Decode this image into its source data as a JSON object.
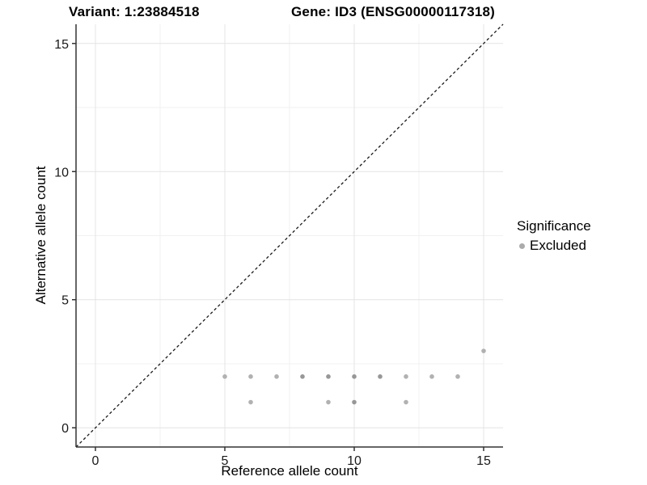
{
  "header": {
    "variant_title": "Variant: 1:23884518",
    "gene_title": "Gene: ID3 (ENSG00000117318)"
  },
  "axes": {
    "x_label": "Reference allele count",
    "y_label": "Alternative allele count"
  },
  "legend": {
    "title": "Significance",
    "items": [
      {
        "label": "Excluded",
        "color": "#ababab"
      }
    ]
  },
  "colors": {
    "point_light": "#b1b1b1",
    "point_dark": "#979797",
    "axis_line": "#333333",
    "tick_label": "#1a1a1a",
    "grid_major": "#e4e4e4",
    "grid_minor": "#f1f1f1",
    "identity_line": "#1a1a1a",
    "background": "#ffffff"
  },
  "chart_data": {
    "type": "scatter",
    "title": "Variant: 1:23884518   |   Gene: ID3 (ENSG00000117318)",
    "xlabel": "Reference allele count",
    "ylabel": "Alternative allele count",
    "xlim": [
      -0.75,
      15.75
    ],
    "ylim": [
      -0.75,
      15.75
    ],
    "x_ticks": [
      0,
      5,
      10,
      15
    ],
    "y_ticks": [
      0,
      5,
      10,
      15
    ],
    "x_tick_labels": [
      "0",
      "5",
      "10",
      "15"
    ],
    "y_tick_labels": [
      "0",
      "5",
      "10",
      "15"
    ],
    "x_minor_ticks": [
      2.5,
      7.5,
      12.5
    ],
    "y_minor_ticks": [
      2.5,
      7.5,
      12.5
    ],
    "grid": true,
    "legend_position": "right",
    "reference_line": {
      "type": "identity",
      "style": "dashed",
      "equation": "y = x"
    },
    "series": [
      {
        "name": "Excluded",
        "points": [
          {
            "x": 5,
            "y": 2,
            "shade": "light"
          },
          {
            "x": 6,
            "y": 2,
            "shade": "light"
          },
          {
            "x": 7,
            "y": 2,
            "shade": "light"
          },
          {
            "x": 8,
            "y": 2,
            "shade": "dark"
          },
          {
            "x": 9,
            "y": 2,
            "shade": "dark"
          },
          {
            "x": 10,
            "y": 2,
            "shade": "dark"
          },
          {
            "x": 11,
            "y": 2,
            "shade": "dark"
          },
          {
            "x": 12,
            "y": 2,
            "shade": "light"
          },
          {
            "x": 13,
            "y": 2,
            "shade": "light"
          },
          {
            "x": 14,
            "y": 2,
            "shade": "light"
          },
          {
            "x": 6,
            "y": 1,
            "shade": "light"
          },
          {
            "x": 9,
            "y": 1,
            "shade": "light"
          },
          {
            "x": 10,
            "y": 1,
            "shade": "dark"
          },
          {
            "x": 12,
            "y": 1,
            "shade": "light"
          },
          {
            "x": 15,
            "y": 3,
            "shade": "light"
          }
        ]
      }
    ]
  }
}
